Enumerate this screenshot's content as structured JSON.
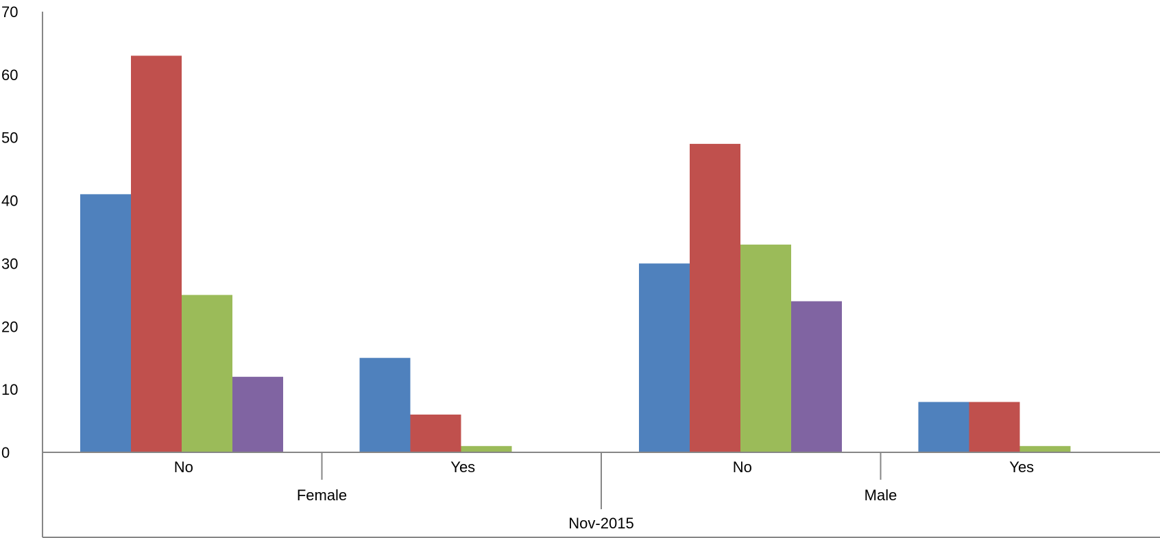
{
  "chart_data": {
    "type": "bar",
    "title": "",
    "xlabel": "",
    "ylabel": "",
    "ylim": [
      0,
      70
    ],
    "yticks": [
      0,
      10,
      20,
      30,
      40,
      50,
      60,
      70
    ],
    "grid": false,
    "legend": "none",
    "categories": [
      [
        "Nov-2015",
        "Female",
        "No"
      ],
      [
        "Nov-2015",
        "Female",
        "Yes"
      ],
      [
        "Nov-2015",
        "Male",
        "No"
      ],
      [
        "Nov-2015",
        "Male",
        "Yes"
      ]
    ],
    "category_levels": {
      "level1": [
        "No",
        "Yes",
        "No",
        "Yes"
      ],
      "level2": [
        "Female",
        "Male"
      ],
      "level3": [
        "Nov-2015"
      ]
    },
    "series": [
      {
        "color": "#4F81BD",
        "values": [
          41,
          15,
          30,
          8
        ]
      },
      {
        "color": "#C0504D",
        "values": [
          63,
          6,
          49,
          8
        ]
      },
      {
        "color": "#9BBB59",
        "values": [
          25,
          1,
          33,
          1
        ]
      },
      {
        "color": "#8064A2",
        "values": [
          12,
          0,
          24,
          0
        ]
      }
    ]
  }
}
